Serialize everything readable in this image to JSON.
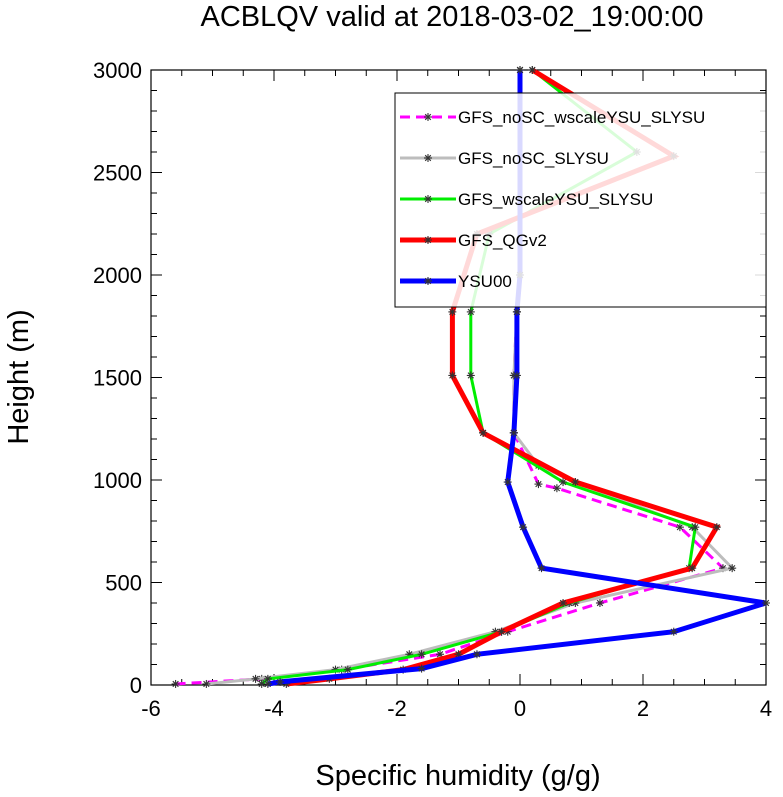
{
  "chart_data": {
    "type": "line",
    "title": "ACBLQV valid at 2018-03-02_19:00:00",
    "xlabel": "Specific humidity (g/g)",
    "ylabel": "Height (m)",
    "xlim": [
      -6,
      4
    ],
    "ylim": [
      0,
      3000
    ],
    "xticks": [
      -6,
      -4,
      -2,
      0,
      2,
      4
    ],
    "yticks": [
      0,
      500,
      1000,
      1500,
      2000,
      2500,
      3000
    ],
    "grid": false,
    "legend_position": "top-right",
    "marker": "asterisk",
    "series": [
      {
        "name": "GFS_noSC_wscaleYSU_SLYSU",
        "color": "#ff00ff",
        "dash": "dashed",
        "width": "thin",
        "points": [
          [
            -5.6,
            5
          ],
          [
            -4.2,
            30
          ],
          [
            -2.9,
            75
          ],
          [
            -1.3,
            150
          ],
          [
            -0.2,
            260
          ],
          [
            1.3,
            400
          ],
          [
            3.3,
            570
          ],
          [
            2.6,
            770
          ],
          [
            0.6,
            960
          ],
          [
            0.3,
            980
          ],
          [
            -0.1,
            1230
          ],
          [
            -0.1,
            1510
          ],
          [
            -0.05,
            1820
          ],
          [
            0.0,
            2000
          ],
          [
            0.0,
            3000
          ]
        ]
      },
      {
        "name": "GFS_noSC_SLYSU",
        "color": "#bdbdbd",
        "dash": "solid",
        "width": "thin",
        "points": [
          [
            -5.1,
            5
          ],
          [
            -4.3,
            30
          ],
          [
            -3.0,
            75
          ],
          [
            -1.8,
            150
          ],
          [
            -0.4,
            260
          ],
          [
            0.9,
            400
          ],
          [
            3.45,
            570
          ],
          [
            2.8,
            770
          ],
          [
            0.9,
            990
          ],
          [
            0.3,
            1070
          ],
          [
            -0.1,
            1230
          ],
          [
            -0.1,
            1510
          ],
          [
            -0.05,
            1820
          ],
          [
            0.0,
            2000
          ],
          [
            0.0,
            3000
          ]
        ]
      },
      {
        "name": "GFS_wscaleYSU_SLYSU",
        "color": "#00ee00",
        "dash": "solid",
        "width": "medium",
        "points": [
          [
            -4.2,
            5
          ],
          [
            -4.1,
            30
          ],
          [
            -2.8,
            75
          ],
          [
            -1.6,
            150
          ],
          [
            -0.3,
            260
          ],
          [
            0.8,
            400
          ],
          [
            2.75,
            570
          ],
          [
            2.85,
            770
          ],
          [
            0.7,
            990
          ],
          [
            -0.6,
            1230
          ],
          [
            -0.8,
            1510
          ],
          [
            -0.8,
            1820
          ],
          [
            -0.5,
            2200
          ],
          [
            1.9,
            2600
          ],
          [
            0.2,
            3000
          ]
        ]
      },
      {
        "name": "GFS_QGv2",
        "color": "#ff0000",
        "dash": "solid",
        "width": "thick",
        "points": [
          [
            -3.8,
            5
          ],
          [
            -3.1,
            30
          ],
          [
            -1.9,
            75
          ],
          [
            -1.0,
            150
          ],
          [
            -0.3,
            260
          ],
          [
            0.7,
            400
          ],
          [
            2.8,
            570
          ],
          [
            3.2,
            770
          ],
          [
            0.9,
            990
          ],
          [
            -0.6,
            1230
          ],
          [
            -1.1,
            1510
          ],
          [
            -1.1,
            1820
          ],
          [
            -0.7,
            2200
          ],
          [
            2.5,
            2580
          ],
          [
            0.2,
            3000
          ]
        ]
      },
      {
        "name": "YSU00",
        "color": "#0000ff",
        "dash": "solid",
        "width": "thick",
        "points": [
          [
            -4.1,
            5
          ],
          [
            -3.9,
            15
          ],
          [
            -1.6,
            80
          ],
          [
            -0.7,
            150
          ],
          [
            2.5,
            260
          ],
          [
            4.0,
            400
          ],
          [
            0.35,
            570
          ],
          [
            0.05,
            770
          ],
          [
            -0.2,
            990
          ],
          [
            -0.1,
            1230
          ],
          [
            -0.05,
            1510
          ],
          [
            -0.05,
            1820
          ],
          [
            0.0,
            2000
          ],
          [
            0.0,
            3000
          ]
        ]
      }
    ]
  }
}
